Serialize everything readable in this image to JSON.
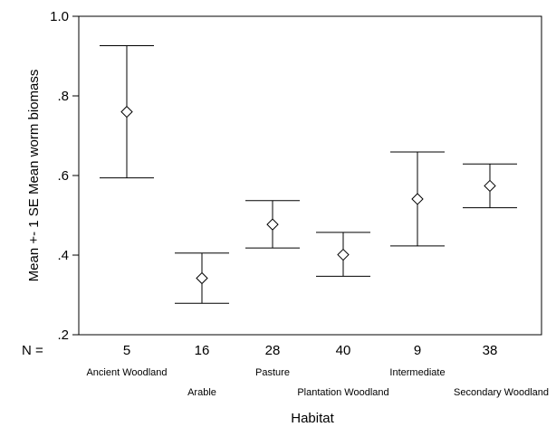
{
  "chart_data": {
    "type": "errorbar",
    "ylabel": "Mean +- 1 SE Mean worm biomass",
    "xlabel": "Habitat",
    "ylim": [
      0.2,
      1.0
    ],
    "yticks": [
      {
        "value": 1.0,
        "label": "1.0"
      },
      {
        "value": 0.8,
        "label": ".8"
      },
      {
        "value": 0.6,
        "label": ".6"
      },
      {
        "value": 0.4,
        "label": ".4"
      },
      {
        "value": 0.2,
        "label": ".2"
      }
    ],
    "n_prefix": "N =",
    "categories": [
      "Ancient Woodland",
      "Arable",
      "Pasture",
      "Plantation Woodland",
      "Intermediate",
      "Secondary Woodland"
    ],
    "n": [
      "5",
      "16",
      "28",
      "40",
      "9",
      "38"
    ],
    "mean": [
      0.76,
      0.342,
      0.477,
      0.401,
      0.541,
      0.574
    ],
    "upper": [
      0.926,
      0.405,
      0.537,
      0.457,
      0.659,
      0.629
    ],
    "lower": [
      0.594,
      0.279,
      0.418,
      0.347,
      0.423,
      0.519
    ],
    "marker": "diamond",
    "grid": false,
    "legend": "none"
  }
}
